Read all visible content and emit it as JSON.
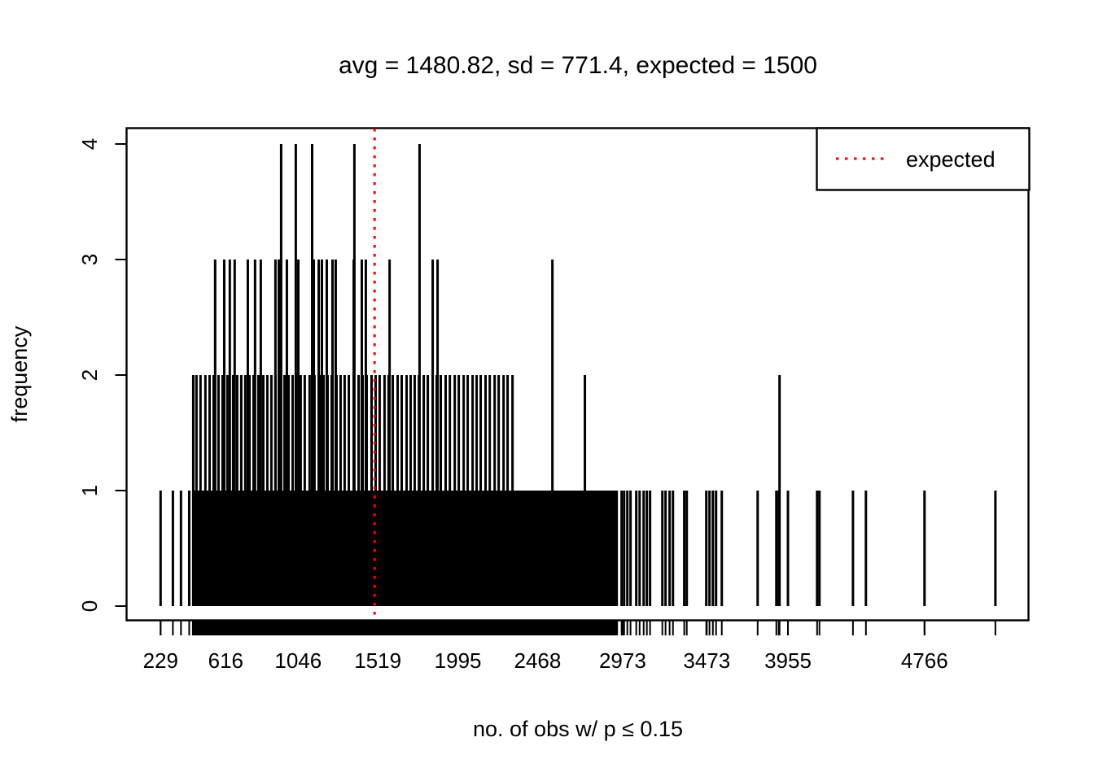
{
  "figure": {
    "title": "avg = 1480.82, sd = 771.4, expected = 1500",
    "xlabel": "no. of obs w/ p ≤ 0.15",
    "ylabel": "frequency",
    "legend": {
      "label": "expected",
      "line_color": "#ff0000",
      "line_style": "dotted"
    }
  },
  "chart_data": {
    "type": "bar",
    "style": "spike plot of frequencies (R plot(table(x)) look): one thin vertical black line per unique x value, height = frequency; matching rug of axis tick marks below baseline",
    "title": "avg = 1480.82, sd = 771.4, expected = 1500",
    "xlabel": "no. of obs w/ p ≤ 0.15",
    "ylabel": "frequency",
    "stats": {
      "avg": 1480.82,
      "sd": 771.4,
      "expected": 1500
    },
    "expected_value": 1500,
    "expected_line_color": "#ff0000",
    "spike_color": "#000000",
    "xlim": [
      229,
      5187
    ],
    "ylim": [
      0,
      4
    ],
    "grid": false,
    "legend_position": "top-right inside plot",
    "x_tick_values": [
      229,
      616,
      1046,
      1519,
      1995,
      2468,
      2973,
      3473,
      3955,
      4766
    ],
    "x_tick_labels": [
      "229",
      "616",
      "1046",
      "1519",
      "1995",
      "2468",
      "2973",
      "3473",
      "3955",
      "4766"
    ],
    "y_tick_values": [
      0,
      1,
      2,
      3,
      4
    ],
    "y_tick_labels": [
      "0",
      "1",
      "2",
      "3",
      "4"
    ],
    "spikes": {
      "freq1_solid_value_ranges": [
        [
          423,
          2213
        ],
        [
          2221,
          2513
        ],
        [
          2521,
          2938
        ]
      ],
      "freq1_values": [
        229,
        302,
        350,
        399,
        2967,
        2982,
        3001,
        3020,
        3054,
        3074,
        3098,
        3117,
        3136,
        3209,
        3228,
        3252,
        3272,
        3339,
        3354,
        3470,
        3489,
        3509,
        3528,
        3562,
        3775,
        3886,
        3900,
        3955,
        4128,
        4142,
        4341,
        4418,
        4766,
        5187
      ],
      "freq2_values": [
        423,
        442,
        466,
        495,
        520,
        544,
        573,
        597,
        626,
        660,
        684,
        708,
        732,
        757,
        781,
        810,
        839,
        863,
        887,
        911,
        936,
        965,
        989,
        1013,
        1037,
        1061,
        1085,
        1114,
        1143,
        1173,
        1197,
        1221,
        1245,
        1274,
        1298,
        1322,
        1347,
        1376,
        1405,
        1429,
        1453,
        1482,
        1506,
        1530,
        1559,
        1583,
        1608,
        1637,
        1661,
        1690,
        1714,
        1738,
        1763,
        1792,
        1816,
        1845,
        1869,
        1893,
        1922,
        1947,
        1976,
        2000,
        2029,
        2053,
        2082,
        2106,
        2130,
        2159,
        2184,
        2213,
        2237,
        2266,
        2290,
        2319,
        2749,
        3905
      ],
      "freq3_values": [
        553,
        607,
        640,
        669,
        747,
        790,
        824,
        911,
        931,
        979,
        1047,
        1139,
        1168,
        1187,
        1216,
        1250,
        1269,
        1376,
        1424,
        1448,
        1589,
        1845,
        1874,
        2556
      ],
      "freq4_values": [
        945,
        1032,
        1129,
        1380,
        1767
      ]
    }
  }
}
